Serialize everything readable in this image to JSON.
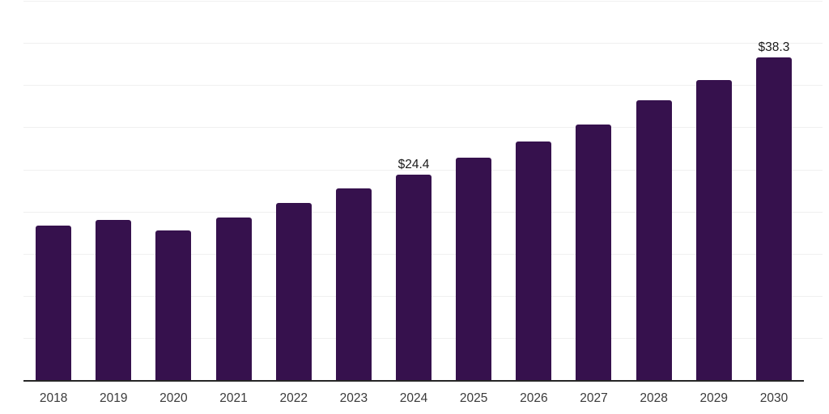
{
  "chart": {
    "colors": {
      "bar": "#36114d",
      "gridline": "#f0f0f0",
      "axis_line": "#262626",
      "data_label": "#1a1a1a",
      "tick_label": "#3a3a3a",
      "background": "#ffffff"
    }
  },
  "chart_data": {
    "type": "bar",
    "title": "",
    "xlabel": "",
    "ylabel": "",
    "categories": [
      "2018",
      "2019",
      "2020",
      "2021",
      "2022",
      "2023",
      "2024",
      "2025",
      "2026",
      "2027",
      "2028",
      "2029",
      "2030"
    ],
    "values": [
      18.3,
      19.0,
      17.8,
      19.3,
      21.0,
      22.7,
      24.4,
      26.4,
      28.3,
      30.3,
      33.2,
      35.6,
      38.3
    ],
    "value_unit_prefix": "$",
    "data_labels": {
      "2024": "$24.4",
      "2030": "$38.3"
    },
    "ylim": [
      0,
      45
    ],
    "y_gridline_step": 5,
    "grid": true,
    "y_axis_tick_labels_shown": false,
    "legend": "none"
  }
}
